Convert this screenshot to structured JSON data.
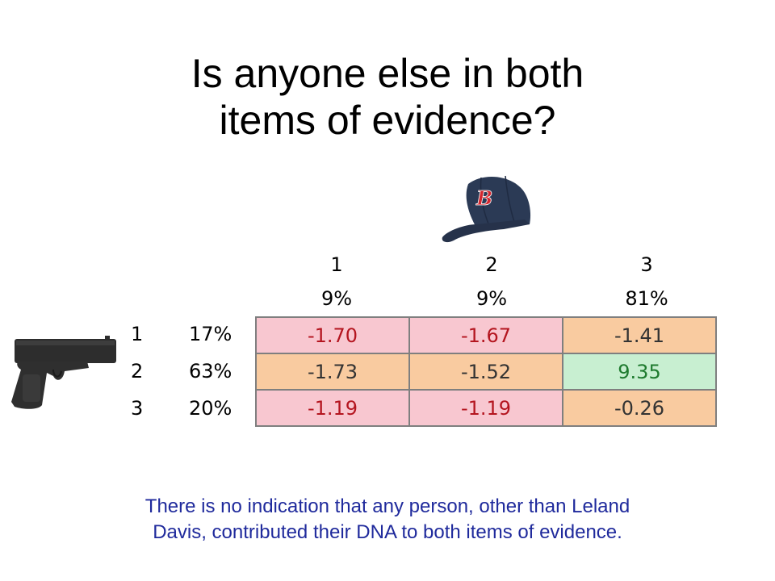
{
  "title": {
    "line1": "Is anyone else in both",
    "line2": "items of evidence?"
  },
  "icons": {
    "cap": "baseball-cap-icon",
    "gun": "handgun-icon"
  },
  "table": {
    "columns": [
      {
        "label": "1",
        "pct": "9%"
      },
      {
        "label": "2",
        "pct": "9%"
      },
      {
        "label": "3",
        "pct": "81%"
      }
    ],
    "rows": [
      {
        "label": "1",
        "pct": "17%",
        "cells": [
          "-1.70",
          "-1.67",
          "-1.41"
        ]
      },
      {
        "label": "2",
        "pct": "63%",
        "cells": [
          "-1.73",
          "-1.52",
          "9.35"
        ]
      },
      {
        "label": "3",
        "pct": "20%",
        "cells": [
          "-1.19",
          "-1.19",
          "-0.26"
        ]
      }
    ],
    "colors": {
      "red_fill": "#f8c7d0",
      "orange_fill": "#f9cba0",
      "green_fill": "#c8efd1",
      "red_text": "#b4151f",
      "green_text": "#1e7a2e"
    }
  },
  "note": {
    "line1": "There is no indication that any person, other than Leland",
    "line2": "Davis, contributed their DNA to both items of evidence."
  }
}
